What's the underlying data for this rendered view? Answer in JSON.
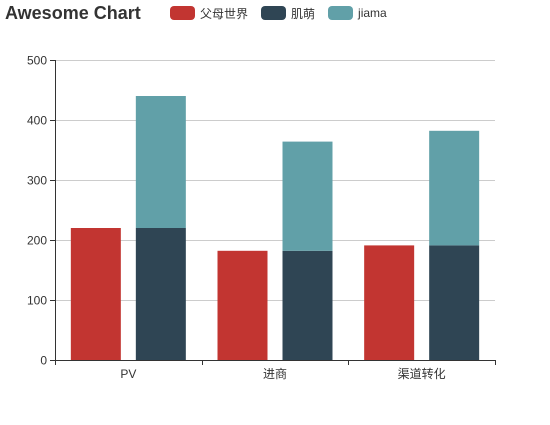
{
  "chart_data": {
    "type": "bar",
    "title": "Awesome Chart",
    "categories": [
      "PV",
      "进商",
      "渠道转化"
    ],
    "series": [
      {
        "name": "父母世界",
        "values": [
          220,
          182,
          191
        ],
        "color": "#c23531",
        "stack": null
      },
      {
        "name": "肌萌",
        "values": [
          220,
          182,
          191
        ],
        "color": "#2f4554",
        "stack": "a"
      },
      {
        "name": "jiama",
        "values": [
          220,
          182,
          191
        ],
        "color": "#61a0a8",
        "stack": "a"
      }
    ],
    "ylim": [
      0,
      500
    ],
    "yticks": [
      0,
      100,
      200,
      300,
      400,
      500
    ],
    "xlabel": "",
    "ylabel": "",
    "grid": true,
    "legend_position": "top"
  }
}
